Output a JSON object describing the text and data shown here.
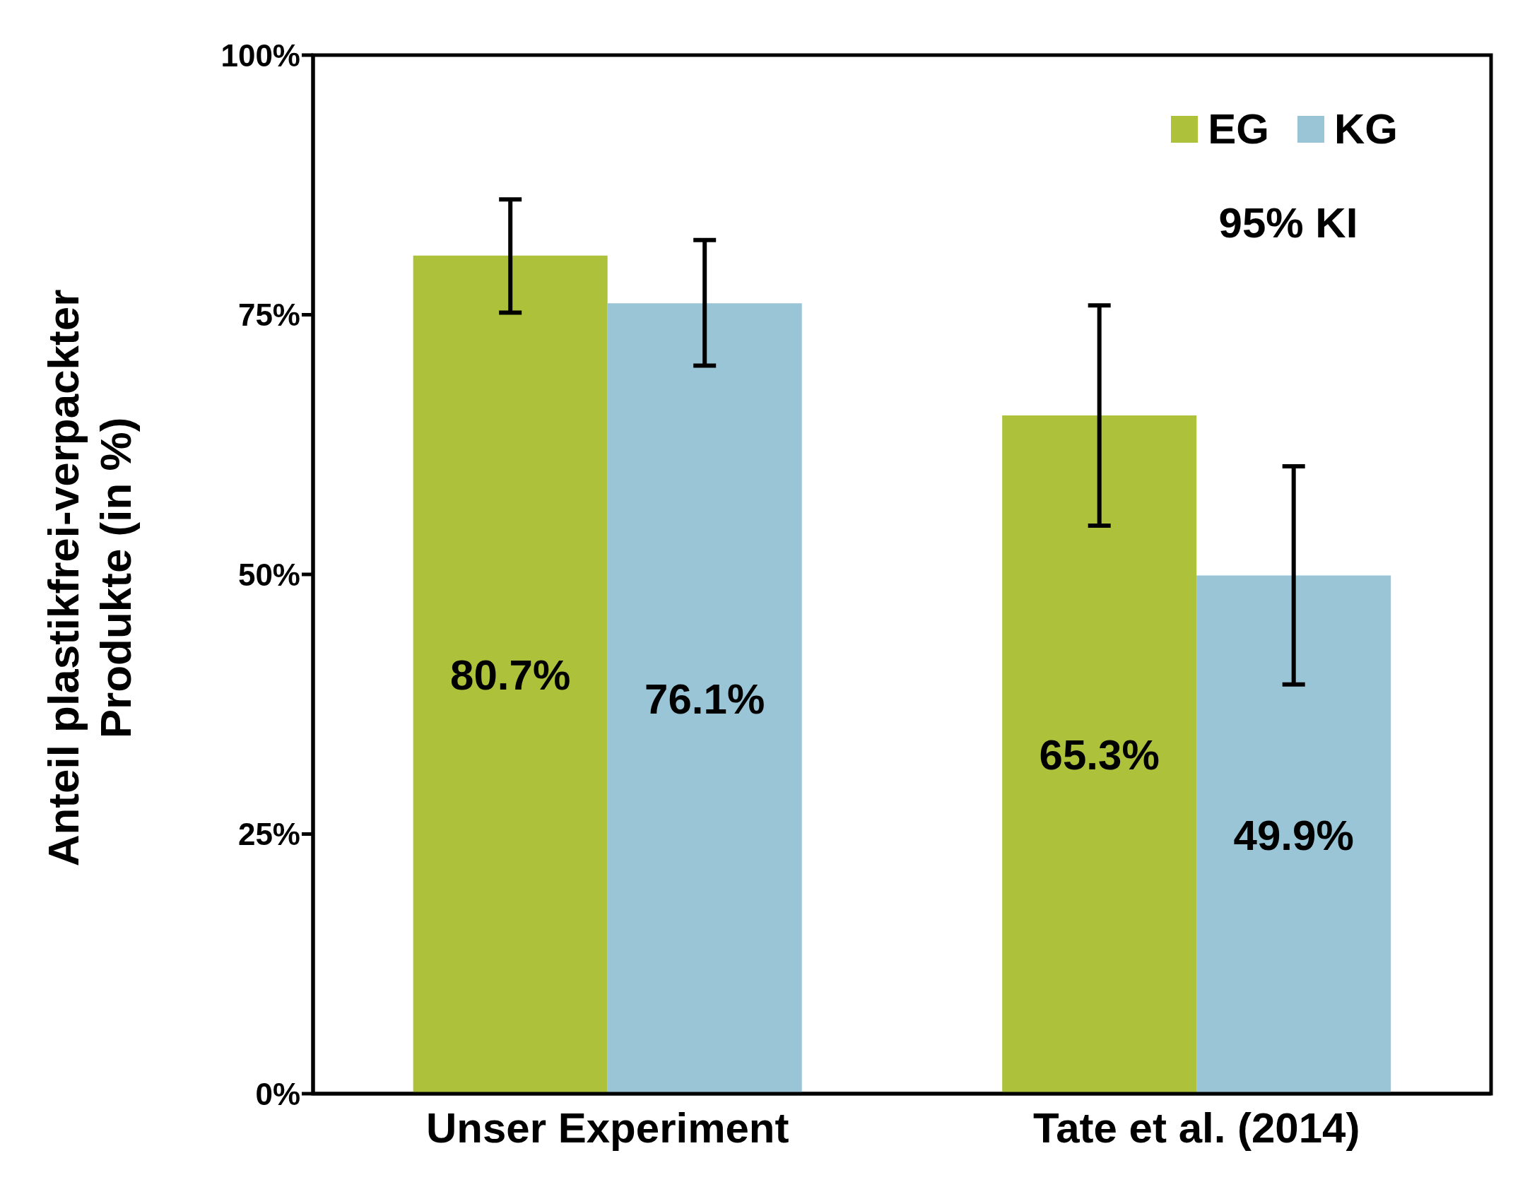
{
  "chart_data": {
    "type": "bar",
    "ylabel": "Anteil plastikfrei-verpackter\nProdukte (in %)",
    "categories": [
      "Unser Experiment",
      "Tate et al. (2014)"
    ],
    "series": [
      {
        "name": "EG",
        "color": "#adc13a",
        "values": [
          80.7,
          65.3
        ],
        "errors": [
          [
            75.2,
            86.1
          ],
          [
            54.7,
            75.9
          ]
        ],
        "value_labels": [
          "80.7%",
          "65.3%"
        ]
      },
      {
        "name": "KG",
        "color": "#9ac5d6",
        "values": [
          76.1,
          49.9
        ],
        "errors": [
          [
            70.1,
            82.2
          ],
          [
            39.4,
            60.4
          ]
        ],
        "value_labels": [
          "76.1%",
          "49.9%"
        ]
      }
    ],
    "ylim": [
      0,
      100
    ],
    "yticks": [
      {
        "value": 0,
        "label": "0%"
      },
      {
        "value": 25,
        "label": "25%"
      },
      {
        "value": 50,
        "label": "50%"
      },
      {
        "value": 75,
        "label": "75%"
      },
      {
        "value": 100,
        "label": "100%"
      }
    ],
    "grid": false,
    "legend": "top right",
    "annotations": [
      "95% KI"
    ]
  }
}
